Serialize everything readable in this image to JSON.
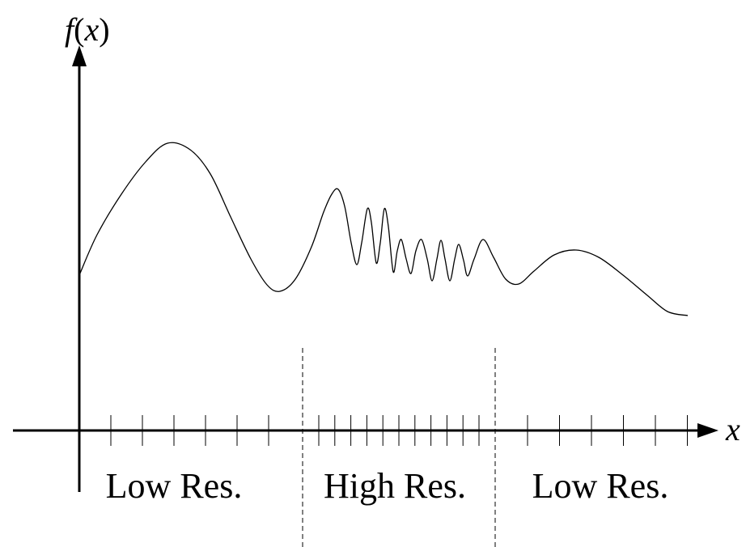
{
  "diagram": {
    "y_axis_label": "f(x)",
    "y_axis_label_parts": {
      "func": "f",
      "open": "(",
      "var": "x",
      "close": ")"
    },
    "x_axis_label": "x",
    "regions": [
      {
        "label": "Low Res.",
        "resolution": "low"
      },
      {
        "label": "High Res.",
        "resolution": "high"
      },
      {
        "label": "Low Res.",
        "resolution": "low"
      }
    ],
    "colors": {
      "stroke": "#000000",
      "background": "#ffffff"
    }
  }
}
